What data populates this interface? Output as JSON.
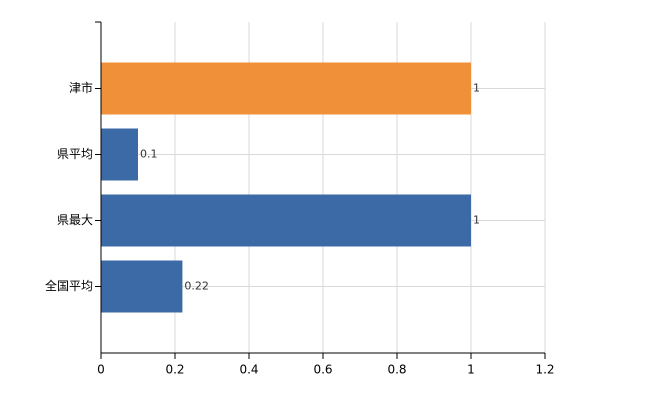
{
  "chart_data": {
    "type": "hbar",
    "categories": [
      "津市",
      "県平均",
      "県最大",
      "全国平均"
    ],
    "values": [
      1,
      0.1,
      1,
      0.22
    ],
    "colors": [
      "#f0913a",
      "#3b6aa6",
      "#3b6aa6",
      "#3b6aa6"
    ],
    "xlim": [
      0,
      1.2
    ],
    "xticks": [
      0,
      0.2,
      0.4,
      0.6,
      0.8,
      1,
      1.2
    ],
    "grid": true
  }
}
